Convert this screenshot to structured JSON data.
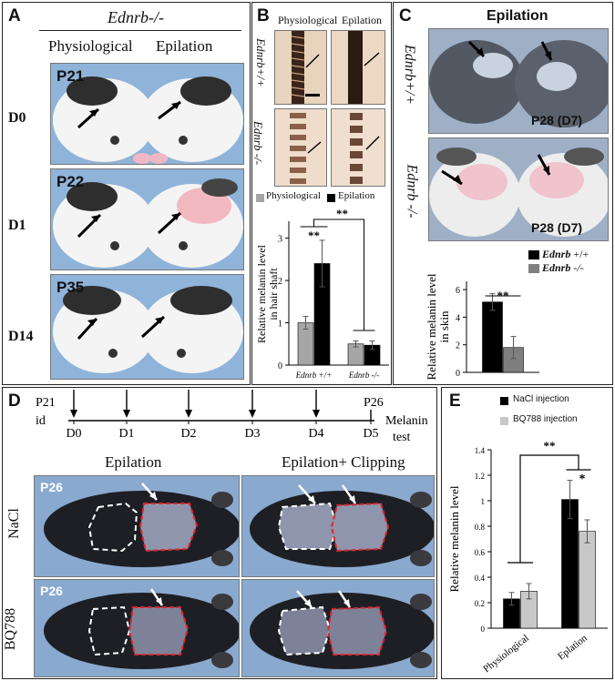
{
  "panelA": {
    "label": "A",
    "genotype": "Ednrb-/-",
    "col_left": "Physiological",
    "col_right": "Epilation",
    "rows": [
      {
        "age": "P21",
        "day": "D0"
      },
      {
        "age": "P22",
        "day": "D1"
      },
      {
        "age": "P35",
        "day": "D14"
      }
    ]
  },
  "panelB": {
    "label": "B",
    "col_left": "Physiological",
    "col_right": "Epilation",
    "row_top": "Ednrb+/+",
    "row_bottom": "Ednrb -/-",
    "legend_physiological": "Physiological",
    "legend_epilation": "Epilation",
    "ylabel": "Relative melanin level in hair shaft",
    "ylabel_line1": "Relative melanin level",
    "ylabel_line2": "in hair shaft",
    "sig_inner": "**",
    "sig_outer": "**",
    "ticks": [
      "0",
      "1",
      "2",
      "3"
    ]
  },
  "panelC": {
    "label": "C",
    "title": "Epilation",
    "row_top": "Ednrb+/+",
    "row_bottom": "Ednrb -/-",
    "caption_top": "P28 (D7)",
    "caption_bottom": "P28 (D7)",
    "legend_wt_name": "Ednrb",
    "legend_wt_suffix": " +/+",
    "legend_ko_name": "Ednrb",
    "legend_ko_suffix": " -/-",
    "ylabel_line1": "Relative melanin level",
    "ylabel_line2": "in skin",
    "sig": "**",
    "ticks": [
      "0",
      "2",
      "4",
      "6"
    ]
  },
  "panelD": {
    "label": "D",
    "timeline_start": "P21",
    "timeline_start_sub": "id",
    "days": [
      "D0",
      "D1",
      "D2",
      "D3",
      "D4",
      "D5"
    ],
    "end_label": "P26",
    "test_label_1": "Melanin",
    "test_label_2": "test",
    "col_left": "Epilation",
    "col_right": "Epilation+ Clipping",
    "row_top": "NaCl",
    "row_bottom": "BQ788",
    "photo_tag": "P26"
  },
  "panelE": {
    "label": "E",
    "legend_nacl": "NaCl injection",
    "legend_bq": "BQ788 injection",
    "ylabel": "Relative melanin level",
    "sig_outer": "**",
    "sig_inner": "*",
    "ticks": [
      "0",
      "0.2",
      "0.4",
      "0.6",
      "0.8",
      "1",
      "1.2",
      "1.4"
    ]
  },
  "colors": {
    "black_bar": "#000000",
    "gray_bar_B": "#a6a6a6",
    "gray_bar_C": "#7f7f7f",
    "gray_bar_E": "#c8c8c8",
    "photo_blue": "#8fb3d9",
    "red_outline": "#e0242a"
  },
  "chart_data": [
    {
      "type": "bar",
      "panel": "B",
      "categories": [
        "Ednrb +/+",
        "Ednrb -/-"
      ],
      "series": [
        {
          "name": "Physiological",
          "values": [
            1.0,
            0.5
          ],
          "errors": [
            0.15,
            0.07
          ]
        },
        {
          "name": "Epilation",
          "values": [
            2.4,
            0.47
          ],
          "errors": [
            0.55,
            0.1
          ]
        }
      ],
      "ylabel": "Relative melanin level in hair shaft",
      "ylim": [
        0,
        3.4
      ],
      "yticks": [
        0,
        1,
        2,
        3
      ]
    },
    {
      "type": "bar",
      "panel": "C",
      "categories": [
        "Epilation"
      ],
      "series": [
        {
          "name": "Ednrb +/+",
          "values": [
            5.1
          ],
          "errors": [
            0.6
          ]
        },
        {
          "name": "Ednrb -/-",
          "values": [
            1.8
          ],
          "errors": [
            0.8
          ]
        }
      ],
      "ylabel": "Relative melanin level in skin",
      "ylim": [
        0,
        6.6
      ],
      "yticks": [
        0,
        2,
        4,
        6
      ]
    },
    {
      "type": "bar",
      "panel": "E",
      "categories": [
        "Physiological",
        "Eplation"
      ],
      "series": [
        {
          "name": "NaCl injection",
          "values": [
            0.23,
            1.01
          ],
          "errors": [
            0.05,
            0.15
          ]
        },
        {
          "name": "BQ788 injection",
          "values": [
            0.29,
            0.76
          ],
          "errors": [
            0.06,
            0.09
          ]
        }
      ],
      "ylabel": "Relative melanin level",
      "ylim": [
        0,
        1.4
      ],
      "yticks": [
        0,
        0.2,
        0.4,
        0.6,
        0.8,
        1,
        1.2,
        1.4
      ]
    }
  ]
}
